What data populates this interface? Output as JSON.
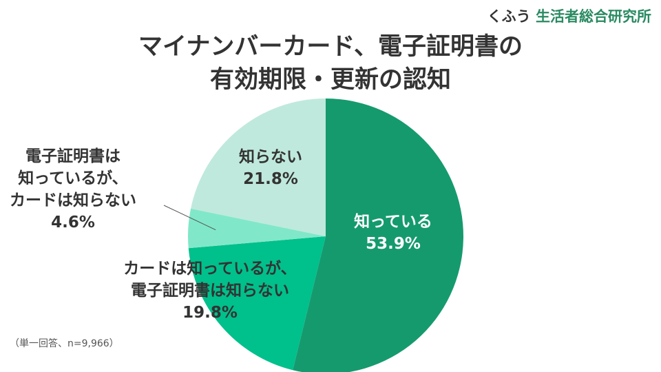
{
  "brand": {
    "part1": "くふう",
    "part2": "生活者総合研究所"
  },
  "title_lines": [
    "マイナンバーカード、電子証明書の",
    "有効期限・更新の認知"
  ],
  "footnote": "（単一回答、n=9,966）",
  "colors": {
    "know": "#159a6e",
    "card_only": "#00c08b",
    "neither_cert": "#80e8c8",
    "dont_know": "#bfe9dc",
    "label_dark": "#333333",
    "label_light": "#ffffff"
  },
  "chart_data": {
    "type": "pie",
    "start_angle": "12 o'clock",
    "direction": "clockwise",
    "slices": [
      {
        "label_lines": [
          "知っている"
        ],
        "value": 53.9,
        "value_label": "53.9%",
        "color": "#159a6e",
        "label_color": "#ffffff",
        "label_position": "inside"
      },
      {
        "label_lines": [
          "カードは知っているが、",
          "電子証明書は知らない"
        ],
        "value": 19.8,
        "value_label": "19.8%",
        "color": "#00c08b",
        "label_color": "#333333",
        "label_position": "inside"
      },
      {
        "label_lines": [
          "電子証明書は",
          "知っているが、",
          "カードは知らない"
        ],
        "value": 4.6,
        "value_label": "4.6%",
        "color": "#80e8c8",
        "label_color": "#333333",
        "label_position": "outside-left"
      },
      {
        "label_lines": [
          "知らない"
        ],
        "value": 21.8,
        "value_label": "21.8%",
        "color": "#bfe9dc",
        "label_color": "#333333",
        "label_position": "inside"
      }
    ]
  }
}
